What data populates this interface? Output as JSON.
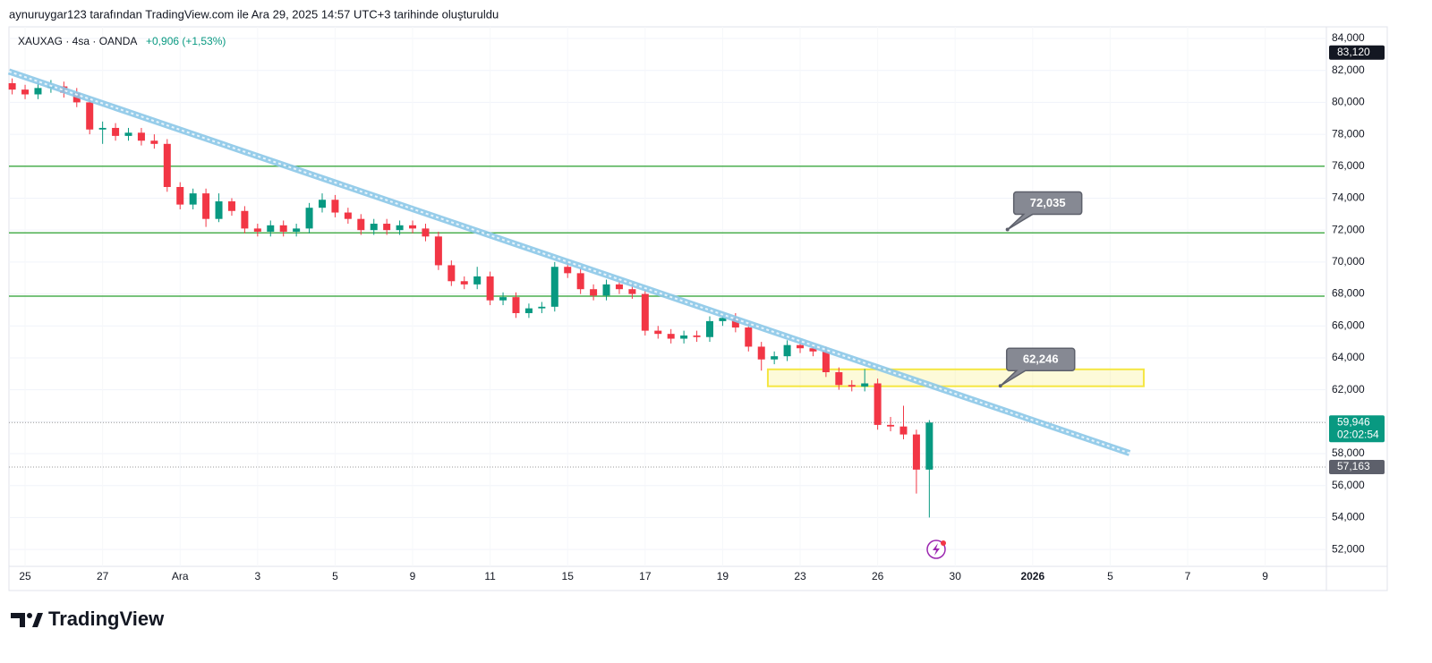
{
  "header": {
    "caption": "aynuruygar123 tarafından TradingView.com ile Ara 29, 2025 14:57 UTC+3 tarihinde oluşturuldu"
  },
  "footer": {
    "brand": "TradingView"
  },
  "chart_data": {
    "type": "candlestick",
    "title": "XAUXAG · 4sa · OANDA",
    "change": "+0,906 (+1,53%)",
    "up_color": "#089981",
    "down_color": "#f23645",
    "x": [
      -2,
      0,
      2,
      4,
      6,
      8,
      10,
      12,
      14,
      16,
      18,
      20,
      22,
      24,
      26,
      28,
      30,
      32,
      34,
      36,
      38,
      40,
      42,
      44,
      46,
      48,
      50,
      52,
      54,
      56,
      58,
      60,
      62,
      64,
      66,
      68,
      70,
      72,
      74,
      76,
      78,
      80,
      82,
      84,
      86,
      88,
      90,
      92,
      94,
      96,
      98,
      100,
      102,
      104,
      106,
      108,
      110,
      112,
      114,
      116,
      118,
      120,
      122,
      124,
      126,
      128,
      130,
      132,
      134,
      136,
      138,
      140
    ],
    "open": [
      81200,
      80800,
      80500,
      80900,
      81000,
      80600,
      80000,
      78300,
      78400,
      77900,
      78100,
      77600,
      77400,
      74700,
      73600,
      74300,
      72700,
      73800,
      73200,
      72100,
      71900,
      72300,
      71900,
      72100,
      73400,
      73900,
      73100,
      72700,
      72000,
      72400,
      72000,
      72300,
      72100,
      71600,
      69800,
      68800,
      68600,
      69100,
      67600,
      67800,
      66800,
      67100,
      67200,
      69700,
      69300,
      68300,
      67900,
      68600,
      68300,
      68000,
      65700,
      65500,
      65200,
      65400,
      65300,
      66300,
      66500,
      65900,
      64700,
      63900,
      64100,
      64800,
      64600,
      64400,
      63100,
      62300,
      62200,
      62400,
      59800,
      59700,
      59200,
      57000
    ],
    "high": [
      81500,
      81100,
      81200,
      81400,
      81300,
      80900,
      80300,
      78800,
      78700,
      78400,
      78400,
      78000,
      77700,
      75000,
      74600,
      74600,
      74300,
      74000,
      73500,
      72400,
      72600,
      72600,
      72400,
      73700,
      74300,
      74200,
      73400,
      73000,
      72700,
      72700,
      72600,
      72600,
      72400,
      71900,
      70100,
      69100,
      69700,
      69400,
      68100,
      68100,
      67400,
      67500,
      70000,
      70000,
      69600,
      68600,
      68900,
      68900,
      68600,
      68300,
      66000,
      65800,
      65700,
      65700,
      66600,
      66800,
      66800,
      66200,
      65000,
      64400,
      65100,
      65100,
      64900,
      64700,
      63400,
      62600,
      63300,
      62700,
      60300,
      61000,
      59500,
      60100
    ],
    "low": [
      80500,
      80200,
      80200,
      80600,
      80300,
      79700,
      78000,
      77400,
      77600,
      77600,
      77300,
      77100,
      74400,
      73300,
      73300,
      72200,
      72500,
      72900,
      71800,
      71600,
      71600,
      71600,
      71600,
      71800,
      73100,
      72800,
      72400,
      71700,
      71700,
      71700,
      71700,
      71800,
      71300,
      69500,
      68500,
      68300,
      68300,
      67300,
      67300,
      66500,
      66500,
      66800,
      66900,
      69000,
      68000,
      67600,
      67600,
      68000,
      67700,
      65400,
      65200,
      64900,
      64900,
      65000,
      65000,
      66000,
      65600,
      64400,
      63200,
      63600,
      63800,
      64300,
      64100,
      62800,
      62000,
      61900,
      61900,
      59500,
      59400,
      58900,
      55500,
      54000
    ],
    "close": [
      80800,
      80500,
      80900,
      81000,
      80600,
      80000,
      78300,
      78400,
      77900,
      78100,
      77600,
      77400,
      74700,
      73600,
      74300,
      72700,
      73800,
      73200,
      72100,
      71900,
      72300,
      71900,
      72100,
      73400,
      73900,
      73100,
      72700,
      72000,
      72400,
      72000,
      72300,
      72100,
      71600,
      69800,
      68800,
      68600,
      69100,
      67600,
      67800,
      66800,
      67100,
      67200,
      69700,
      69300,
      68300,
      67900,
      68600,
      68300,
      68000,
      65700,
      65500,
      65200,
      65400,
      65300,
      66300,
      66500,
      65900,
      64700,
      63900,
      64100,
      64800,
      64600,
      64400,
      63100,
      62300,
      62200,
      62400,
      59800,
      59700,
      59200,
      57000,
      59946
    ],
    "xlim": [
      -2.5,
      201.2
    ],
    "ylim": [
      50940,
      84730
    ],
    "xticks": [
      {
        "value": 0,
        "label": "25"
      },
      {
        "value": 12,
        "label": "27"
      },
      {
        "value": 24,
        "label": "Ara"
      },
      {
        "value": 36,
        "label": "3"
      },
      {
        "value": 48,
        "label": "5"
      },
      {
        "value": 60,
        "label": "9"
      },
      {
        "value": 72,
        "label": "11"
      },
      {
        "value": 84,
        "label": "15"
      },
      {
        "value": 96,
        "label": "17"
      },
      {
        "value": 108,
        "label": "19"
      },
      {
        "value": 120,
        "label": "23"
      },
      {
        "value": 132,
        "label": "26"
      },
      {
        "value": 144,
        "label": "30"
      },
      {
        "value": 156,
        "label": "2026"
      },
      {
        "value": 168,
        "label": "5"
      },
      {
        "value": 180,
        "label": "7"
      },
      {
        "value": 192,
        "label": "9"
      }
    ],
    "yticks": [
      {
        "value": 52000,
        "label": "52,000"
      },
      {
        "value": 54000,
        "label": "54,000"
      },
      {
        "value": 56000,
        "label": "56,000"
      },
      {
        "value": 58000,
        "label": "58,000"
      },
      {
        "value": 60000,
        "label": "60,000"
      },
      {
        "value": 62000,
        "label": "62,000"
      },
      {
        "value": 64000,
        "label": "64,000"
      },
      {
        "value": 66000,
        "label": "66,000"
      },
      {
        "value": 68000,
        "label": "68,000"
      },
      {
        "value": 70000,
        "label": "70,000"
      },
      {
        "value": 72000,
        "label": "72,000"
      },
      {
        "value": 74000,
        "label": "74,000"
      },
      {
        "value": 76000,
        "label": "76,000"
      },
      {
        "value": 78000,
        "label": "78,000"
      },
      {
        "value": 80000,
        "label": "80,000"
      },
      {
        "value": 82000,
        "label": "82,000"
      },
      {
        "value": 84000,
        "label": "84,000"
      }
    ],
    "grid": true,
    "levels": [
      76000,
      71830,
      67860
    ],
    "level_color": "#4caf50",
    "trendline": {
      "x": [
        -2.5,
        171
      ],
      "y": [
        81934,
        58031
      ],
      "color": "#8cc8e8"
    },
    "zone": {
      "x": [
        115,
        173.2
      ],
      "y": [
        62220,
        63280
      ],
      "color": "#f5e642"
    },
    "callouts": [
      {
        "x": 152.1,
        "y": 72035,
        "label": "72,035"
      },
      {
        "x": 151,
        "y": 62246,
        "label": "62,246"
      }
    ],
    "high_marker": {
      "value": 83120,
      "label": "83,120"
    },
    "last_price": {
      "value": 59946,
      "label": "59,946"
    },
    "countdown": "02:02:54",
    "prev_marker": {
      "value": 57163,
      "label": "57,163"
    }
  }
}
